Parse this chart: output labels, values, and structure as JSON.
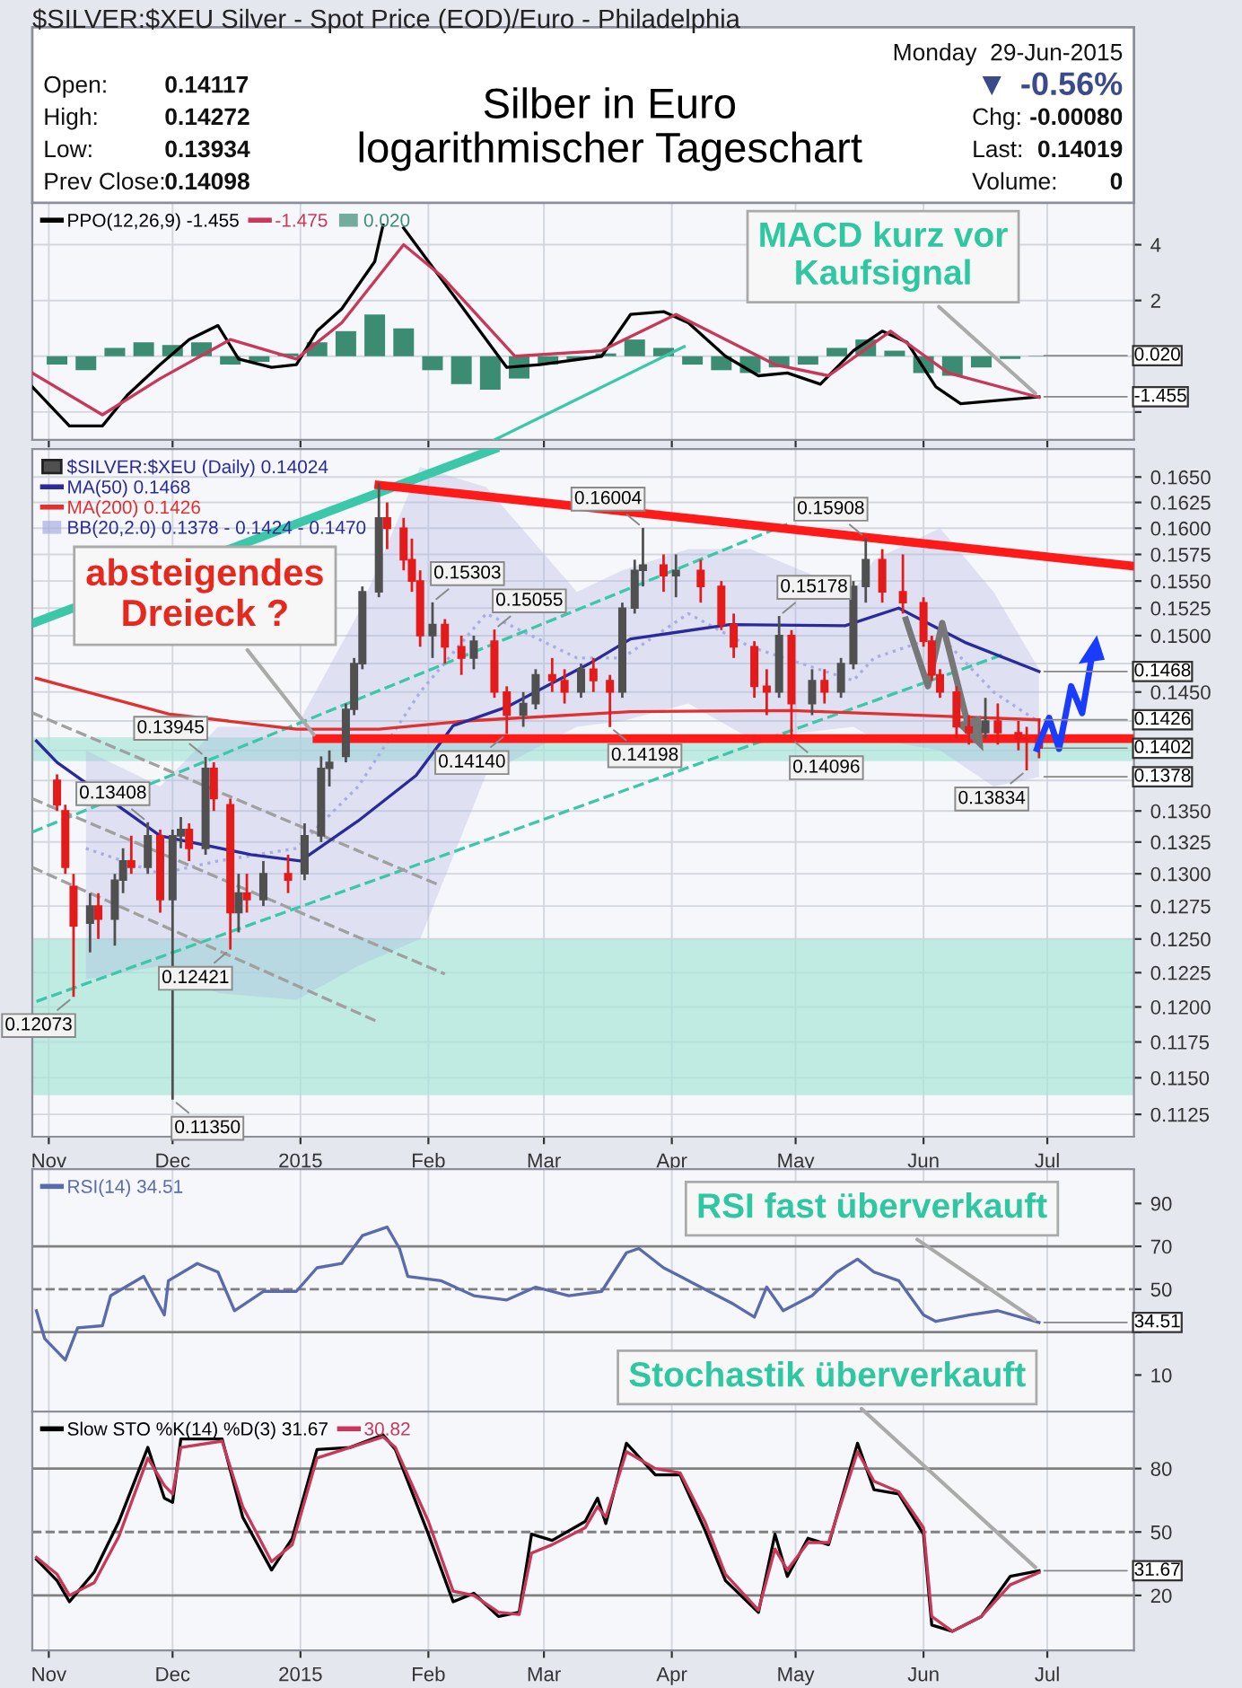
{
  "chart_data": [
    {
      "type": "other",
      "subtitle": "$SILVER:$XEU Silver - Spot Price (EOD)/Euro - Philadelphia",
      "title": "Silber in Euro\nlogarithmischer Tageschart",
      "annotations": [
        "Open:",
        "0.14117",
        "High:",
        "0.14272",
        "Low:",
        "0.13934",
        "Prev Close:",
        "0.14098",
        "Monday  29-Jun-2015",
        "▼",
        "-0.56%",
        "Chg:",
        "-0.00080",
        "Last:",
        "0.14019",
        "Volume:",
        "0"
      ]
    },
    {
      "type": "line",
      "legend": "top left",
      "grid": true,
      "tick_labels": "y",
      "xlim": [
        "2014-10-28",
        "2015-07-22"
      ],
      "xticks": [
        {
          "value": "2014-11-01",
          "label": "Nov"
        },
        {
          "value": "2014-12-01",
          "label": "Dec"
        },
        {
          "value": "2015-01-01",
          "label": "2015"
        },
        {
          "value": "2015-02-01",
          "label": "Feb"
        },
        {
          "value": "2015-03-01",
          "label": "Mar"
        },
        {
          "value": "2015-04-01",
          "label": "Apr"
        },
        {
          "value": "2015-05-01",
          "label": "May"
        },
        {
          "value": "2015-06-01",
          "label": "Jun"
        },
        {
          "value": "2015-07-01",
          "label": "Jul"
        }
      ],
      "ylim": [
        -3.0,
        5.5
      ],
      "yticks": [
        4,
        2,
        {
          "value": 0,
          "label": null
        },
        {
          "value": -2,
          "label": null
        }
      ],
      "annotations": [
        {
          "text": "MACD kurz vor\nKaufsignal",
          "x": "2015-06-29",
          "y": -1.455
        },
        {
          "text": "0.020",
          "x": "2015-06-29",
          "y": 0.02
        },
        {
          "text": "-1.455",
          "x": "2015-06-29",
          "y": -1.455
        }
      ],
      "series": [
        {
          "name": "0.020",
          "type": "bar",
          "color": "#3c8c74",
          "x": [
            "2014-11-03",
            "2014-11-10",
            "2014-11-17",
            "2014-11-24",
            "2014-12-01",
            "2014-12-08",
            "2014-12-15",
            "2014-12-22",
            "2014-12-29",
            "2015-01-05",
            "2015-01-12",
            "2015-01-19",
            "2015-01-26",
            "2015-02-02",
            "2015-02-09",
            "2015-02-16",
            "2015-02-23",
            "2015-03-02",
            "2015-03-09",
            "2015-03-16",
            "2015-03-23",
            "2015-03-30",
            "2015-04-06",
            "2015-04-13",
            "2015-04-20",
            "2015-04-27",
            "2015-05-04",
            "2015-05-11",
            "2015-05-18",
            "2015-05-25",
            "2015-06-01",
            "2015-06-08",
            "2015-06-15",
            "2015-06-22",
            "2015-06-29"
          ],
          "values": [
            -0.3,
            -0.5,
            0.3,
            0.5,
            0.4,
            0.5,
            -0.3,
            -0.2,
            0.1,
            0.5,
            0.9,
            1.5,
            1.0,
            -0.5,
            -1.0,
            -1.2,
            -0.8,
            -0.3,
            -0.1,
            0.1,
            0.6,
            0.3,
            -0.3,
            -0.5,
            -0.6,
            -0.4,
            -0.3,
            0.3,
            0.6,
            0.2,
            -0.6,
            -0.7,
            -0.4,
            -0.1,
            0.02
          ]
        },
        {
          "name": "PPO(12,26,9) -1.455",
          "color": "#000000",
          "x": [
            "2014-10-28",
            "2014-11-06",
            "2014-11-14",
            "2014-11-20",
            "2014-11-28",
            "2014-12-05",
            "2014-12-12",
            "2014-12-17",
            "2014-12-25",
            "2014-12-31",
            "2015-01-05",
            "2015-01-11",
            "2015-01-19",
            "2015-01-21",
            "2015-01-23",
            "2015-01-26",
            "2015-02-01",
            "2015-02-12",
            "2015-02-20",
            "2015-02-28",
            "2015-03-15",
            "2015-03-22",
            "2015-03-30",
            "2015-04-05",
            "2015-04-14",
            "2015-04-22",
            "2015-04-29",
            "2015-05-07",
            "2015-05-15",
            "2015-05-22",
            "2015-05-28",
            "2015-06-04",
            "2015-06-10",
            "2015-06-18",
            "2015-06-29"
          ],
          "values": [
            -1.1,
            -2.5,
            -2.5,
            -1.4,
            -0.3,
            0.6,
            1.1,
            -0.1,
            -0.4,
            -0.3,
            0.9,
            1.7,
            3.4,
            4.7,
            null,
            4.6,
            3.4,
            1.2,
            -0.4,
            -0.3,
            0.0,
            1.5,
            1.6,
            1.2,
            0.0,
            -0.7,
            -0.6,
            -1.0,
            0.2,
            0.9,
            0.5,
            -1.1,
            -1.7,
            -1.6,
            -1.455
          ]
        },
        {
          "name": "-1.475",
          "color": "#c8385a",
          "x": [
            "2014-10-28",
            "2014-11-14",
            "2014-11-28",
            "2014-12-15",
            "2014-12-31",
            "2015-01-11",
            "2015-01-26",
            "2015-02-04",
            "2015-02-22",
            "2015-03-15",
            "2015-04-02",
            "2015-04-26",
            "2015-05-09",
            "2015-05-24",
            "2015-06-07",
            "2015-06-29"
          ],
          "values": [
            -0.6,
            -2.1,
            -0.8,
            0.6,
            -0.1,
            1.2,
            4.0,
            2.9,
            0.0,
            0.2,
            1.5,
            -0.3,
            -0.7,
            0.9,
            -0.6,
            -1.475
          ]
        },
        {
          "color": "#3cc8a8",
          "x": [
            "2015-02-17",
            "2015-04-04"
          ],
          "values": [
            -3.0,
            0.35
          ]
        }
      ]
    },
    {
      "type": "candlestick",
      "log": true,
      "legend": "top left",
      "grid": true,
      "xlim": [
        "2014-10-28",
        "2015-07-22"
      ],
      "xticks": [
        {
          "value": "2014-11-01",
          "label": "Nov"
        },
        {
          "value": "2014-12-01",
          "label": "Dec"
        },
        {
          "value": "2015-01-01",
          "label": "2015"
        },
        {
          "value": "2015-02-01",
          "label": "Feb"
        },
        {
          "value": "2015-03-01",
          "label": "Mar"
        },
        {
          "value": "2015-04-01",
          "label": "Apr"
        },
        {
          "value": "2015-05-01",
          "label": "May"
        },
        {
          "value": "2015-06-01",
          "label": "Jun"
        },
        {
          "value": "2015-07-01",
          "label": "Jul"
        }
      ],
      "ylim": [
        0.111,
        0.1678
      ],
      "yticks": [
        {
          "value": 0.165,
          "label": "0.1650"
        },
        {
          "value": 0.1625,
          "label": "0.1625"
        },
        {
          "value": 0.16,
          "label": "0.1600"
        },
        {
          "value": 0.1575,
          "label": "0.1575"
        },
        {
          "value": 0.155,
          "label": "0.1550"
        },
        {
          "value": 0.1525,
          "label": "0.1525"
        },
        {
          "value": 0.15,
          "label": "0.1500"
        },
        {
          "value": 0.1475,
          "label": null
        },
        {
          "value": 0.145,
          "label": "0.1450"
        },
        {
          "value": 0.1425,
          "label": null
        },
        {
          "value": 0.14,
          "label": null
        },
        {
          "value": 0.1375,
          "label": null
        },
        {
          "value": 0.135,
          "label": "0.1350"
        },
        {
          "value": 0.1325,
          "label": "0.1325"
        },
        {
          "value": 0.13,
          "label": "0.1300"
        },
        {
          "value": 0.1275,
          "label": "0.1275"
        },
        {
          "value": 0.125,
          "label": "0.1250"
        },
        {
          "value": 0.1225,
          "label": "0.1225"
        },
        {
          "value": 0.12,
          "label": "0.1200"
        },
        {
          "value": 0.1175,
          "label": "0.1175"
        },
        {
          "value": 0.115,
          "label": "0.1150"
        },
        {
          "value": 0.1125,
          "label": "0.1125"
        }
      ],
      "bands": [
        {
          "axis": "y",
          "from": 0.1391,
          "to": 0.1411,
          "color": "#a9e6d8"
        },
        {
          "axis": "y",
          "from": 0.1138,
          "to": 0.125,
          "color": "#a9e6d8"
        }
      ],
      "annotations": [
        {
          "text": "absteigendes\nDreieck ?",
          "x": "2015-01-05",
          "y": 0.141
        },
        {
          "text": "0.1468",
          "x": "2015-06-29",
          "y": 0.1468
        },
        {
          "text": "0.1426",
          "x": "2015-06-29",
          "y": 0.1426
        },
        {
          "text": "0.1402",
          "x": "2015-06-29",
          "y": 0.14019
        },
        {
          "text": "0.1378",
          "x": "2015-06-29",
          "y": 0.1378
        }
      ],
      "series": [
        {
          "name": "BB(20,2.0) 0.1378 - 0.1424 - 0.1470",
          "type": "line",
          "color": "#a8aee0",
          "line_style": "dotted",
          "x": [
            "2014-11-10",
            "2014-11-28",
            "2014-12-12",
            "2014-12-31",
            "2015-01-15",
            "2015-01-30",
            "2015-02-15",
            "2015-03-09",
            "2015-03-20",
            "2015-04-05",
            "2015-04-20",
            "2015-05-15",
            "2015-05-20",
            "2015-06-05",
            "2015-06-18",
            "2015-06-29"
          ],
          "values": [
            0.132,
            0.13,
            0.131,
            0.132,
            0.137,
            0.145,
            0.152,
            0.148,
            0.148,
            0.152,
            0.149,
            0.146,
            0.148,
            0.15,
            0.145,
            0.1424
          ],
          "lower": [
            0.122,
            0.123,
            0.121,
            0.1205,
            0.123,
            0.125,
            0.138,
            0.142,
            0.1425,
            0.144,
            0.141,
            0.142,
            0.141,
            0.14,
            0.137,
            0.1378
          ],
          "upper": [
            0.14,
            0.137,
            0.142,
            0.142,
            0.152,
            0.166,
            0.164,
            0.154,
            0.156,
            0.158,
            0.158,
            0.154,
            0.157,
            0.16,
            0.154,
            0.147
          ]
        },
        {
          "color": "#3cc8a8",
          "type": "line",
          "x": [
            "2014-10-28",
            "2015-02-17"
          ],
          "values": [
            0.1511,
            0.1678
          ]
        },
        {
          "color": "#3cc8a8",
          "type": "line",
          "line_style": "dashed",
          "x": [
            "2014-10-28",
            "2015-04-29"
          ],
          "values": [
            0.1333,
            0.1604
          ]
        },
        {
          "color": "#3cc8a8",
          "type": "line",
          "line_style": "dashed",
          "x": [
            "2014-10-29",
            "2015-06-21"
          ],
          "values": [
            0.1204,
            0.1484
          ]
        },
        {
          "color": "#a0a0a0",
          "type": "line",
          "line_style": "dashed",
          "x": [
            "2014-10-28",
            "2015-02-03"
          ],
          "values": [
            0.1432,
            0.1292
          ]
        },
        {
          "color": "#a0a0a0",
          "type": "line",
          "line_style": "dashed",
          "x": [
            "2014-10-28",
            "2015-02-05"
          ],
          "values": [
            0.136,
            0.1224
          ]
        },
        {
          "color": "#a0a0a0",
          "type": "line",
          "line_style": "dashed",
          "x": [
            "2014-10-28",
            "2015-01-20"
          ],
          "values": [
            0.1305,
            0.1189
          ]
        },
        {
          "name": "MA(200) 0.1426",
          "type": "line",
          "color": "#e03030",
          "x": [
            "2014-10-29",
            "2014-11-30",
            "2014-12-31",
            "2015-01-20",
            "2015-02-10",
            "2015-03-22",
            "2015-04-30",
            "2015-06-29"
          ],
          "values": [
            0.1462,
            0.1431,
            0.1418,
            0.1418,
            0.1425,
            0.1433,
            0.1434,
            0.1426
          ]
        },
        {
          "name": "MA(50) 0.1468",
          "type": "line",
          "color": "#2a2a9a",
          "x": [
            "2014-10-29",
            "2014-11-03",
            "2014-11-28",
            "2014-12-20",
            "2015-01-01",
            "2015-01-15",
            "2015-01-29",
            "2015-02-07",
            "2015-02-20",
            "2015-03-12",
            "2015-03-22",
            "2015-04-15",
            "2015-05-13",
            "2015-05-26",
            "2015-06-11",
            "2015-06-29"
          ],
          "values": [
            0.1408,
            0.139,
            0.133,
            0.1315,
            0.131,
            0.1342,
            0.1379,
            0.1421,
            0.1437,
            0.1475,
            0.1497,
            0.151,
            0.1509,
            0.1525,
            0.1494,
            0.1468
          ]
        },
        {
          "color": "#ff1a1a",
          "type": "line",
          "x": [
            "2015-01-20",
            "2015-07-22"
          ],
          "values": [
            0.1642,
            0.1564
          ]
        },
        {
          "color": "#ff1a1a",
          "type": "line",
          "x": [
            "2015-01-05",
            "2015-07-22"
          ],
          "values": [
            0.141,
            0.141
          ]
        },
        {
          "name": "$SILVER:$XEU (Daily) 0.14024",
          "type": "candlestick",
          "x": [
            "2014-11-03",
            "2014-11-05",
            "2014-11-07",
            "2014-11-11",
            "2014-11-13",
            "2014-11-17",
            "2014-11-19",
            "2014-11-21",
            "2014-11-25",
            "2014-11-28",
            "2014-12-01",
            "2014-12-03",
            "2014-12-05",
            "2014-12-09",
            "2014-12-11",
            "2014-12-15",
            "2014-12-17",
            "2014-12-19",
            "2014-12-23",
            "2014-12-29",
            "2015-01-02",
            "2015-01-06",
            "2015-01-08",
            "2015-01-12",
            "2015-01-14",
            "2015-01-16",
            "2015-01-20",
            "2015-01-22",
            "2015-01-26",
            "2015-01-28",
            "2015-01-30",
            "2015-02-02",
            "2015-02-05",
            "2015-02-09",
            "2015-02-12",
            "2015-02-17",
            "2015-02-20",
            "2015-02-24",
            "2015-02-27",
            "2015-03-03",
            "2015-03-06",
            "2015-03-10",
            "2015-03-13",
            "2015-03-17",
            "2015-03-20",
            "2015-03-23",
            "2015-03-25",
            "2015-03-30",
            "2015-04-02",
            "2015-04-08",
            "2015-04-13",
            "2015-04-16",
            "2015-04-21",
            "2015-04-24",
            "2015-04-27",
            "2015-04-30",
            "2015-05-05",
            "2015-05-08",
            "2015-05-12",
            "2015-05-15",
            "2015-05-18",
            "2015-05-22",
            "2015-05-27",
            "2015-06-01",
            "2015-06-03",
            "2015-06-05",
            "2015-06-09",
            "2015-06-12",
            "2015-06-16",
            "2015-06-19",
            "2015-06-24",
            "2015-06-26",
            "2015-06-29"
          ],
          "ohlc": [
            [
              0.1375,
              0.138,
              0.135,
              0.1355
            ],
            [
              0.135,
              0.1355,
              0.13,
              0.1305
            ],
            [
              0.129,
              0.13,
              0.12073,
              0.126
            ],
            [
              0.1262,
              0.1285,
              0.124,
              0.1275
            ],
            [
              0.1275,
              0.1285,
              0.125,
              0.1265
            ],
            [
              0.1265,
              0.13,
              0.1245,
              0.1295
            ],
            [
              0.1295,
              0.132,
              0.1285,
              0.131
            ],
            [
              0.131,
              0.133,
              0.13,
              0.1305
            ],
            [
              0.1305,
              0.13408,
              0.13,
              0.133
            ],
            [
              0.133,
              0.1335,
              0.127,
              0.128
            ],
            [
              0.128,
              0.1335,
              0.1135,
              0.133
            ],
            [
              0.133,
              0.1345,
              0.132,
              0.1335
            ],
            [
              0.1335,
              0.134,
              0.131,
              0.132
            ],
            [
              0.132,
              0.13945,
              0.1315,
              0.1385
            ],
            [
              0.1385,
              0.139,
              0.135,
              0.136
            ],
            [
              0.1355,
              0.136,
              0.12421,
              0.127
            ],
            [
              0.127,
              0.13,
              0.1255,
              0.1285
            ],
            [
              0.1285,
              0.13,
              0.127,
              0.128
            ],
            [
              0.128,
              0.131,
              0.1275,
              0.13
            ],
            [
              0.13,
              0.1315,
              0.1285,
              0.1295
            ],
            [
              0.13,
              0.134,
              0.1295,
              0.133
            ],
            [
              0.133,
              0.1395,
              0.1325,
              0.1385
            ],
            [
              0.1385,
              0.14,
              0.137,
              0.139
            ],
            [
              0.1395,
              0.144,
              0.139,
              0.1435
            ],
            [
              0.1435,
              0.148,
              0.143,
              0.1475
            ],
            [
              0.1475,
              0.1545,
              0.147,
              0.154
            ],
            [
              0.154,
              0.1644,
              0.1535,
              0.161
            ],
            [
              0.161,
              0.1625,
              0.158,
              0.16
            ],
            [
              0.16,
              0.161,
              0.156,
              0.157
            ],
            [
              0.157,
              0.159,
              0.154,
              0.155
            ],
            [
              0.155,
              0.156,
              0.149,
              0.15
            ],
            [
              0.15,
              0.15303,
              0.148,
              0.151
            ],
            [
              0.151,
              0.1515,
              0.1475,
              0.149
            ],
            [
              0.149,
              0.15,
              0.1465,
              0.148
            ],
            [
              0.148,
              0.15,
              0.147,
              0.1495
            ],
            [
              0.1495,
              0.15055,
              0.1445,
              0.145
            ],
            [
              0.145,
              0.1455,
              0.1414,
              0.143
            ],
            [
              0.143,
              0.145,
              0.142,
              0.144
            ],
            [
              0.144,
              0.147,
              0.1435,
              0.1465
            ],
            [
              0.1465,
              0.148,
              0.145,
              0.146
            ],
            [
              0.146,
              0.147,
              0.144,
              0.145
            ],
            [
              0.145,
              0.1475,
              0.1445,
              0.147
            ],
            [
              0.147,
              0.148,
              0.145,
              0.146
            ],
            [
              0.146,
              0.1465,
              0.14198,
              0.145
            ],
            [
              0.145,
              0.153,
              0.1445,
              0.1525
            ],
            [
              0.1525,
              0.157,
              0.152,
              0.156
            ],
            [
              0.156,
              0.16004,
              0.1545,
              0.1565
            ],
            [
              0.1565,
              0.1575,
              0.154,
              0.1555
            ],
            [
              0.1555,
              0.1575,
              0.1535,
              0.156
            ],
            [
              0.156,
              0.157,
              0.153,
              0.1545
            ],
            [
              0.1545,
              0.155,
              0.1505,
              0.151
            ],
            [
              0.151,
              0.152,
              0.148,
              0.149
            ],
            [
              0.149,
              0.1495,
              0.1445,
              0.1455
            ],
            [
              0.1455,
              0.147,
              0.143,
              0.145
            ],
            [
              0.145,
              0.15178,
              0.1445,
              0.15
            ],
            [
              0.15,
              0.1505,
              0.14096,
              0.144
            ],
            [
              0.144,
              0.147,
              0.143,
              0.146
            ],
            [
              0.146,
              0.147,
              0.144,
              0.145
            ],
            [
              0.145,
              0.148,
              0.1445,
              0.1475
            ],
            [
              0.1475,
              0.155,
              0.147,
              0.1545
            ],
            [
              0.1545,
              0.15908,
              0.153,
              0.157
            ],
            [
              0.157,
              0.158,
              0.153,
              0.154
            ],
            [
              0.154,
              0.1575,
              0.152,
              0.153
            ],
            [
              0.153,
              0.1535,
              0.149,
              0.1495
            ],
            [
              0.1495,
              0.15,
              0.146,
              0.1465
            ],
            [
              0.1465,
              0.147,
              0.1445,
              0.145
            ],
            [
              0.145,
              0.1455,
              0.141,
              0.142
            ],
            [
              0.142,
              0.143,
              0.1405,
              0.1415
            ],
            [
              0.1415,
              0.1445,
              0.141,
              0.1425
            ],
            [
              0.1425,
              0.144,
              0.1405,
              0.1415
            ],
            [
              0.1415,
              0.1425,
              0.14,
              0.141
            ],
            [
              0.141,
              0.142,
              0.13834,
              0.14098
            ],
            [
              0.14117,
              0.14272,
              0.13934,
              0.14019
            ]
          ],
          "colors": [
            "#e31b1b",
            "#e31b1b",
            "#e31b1b",
            "#505050",
            "#e31b1b",
            "#505050",
            "#505050",
            "#e31b1b",
            "#505050",
            "#e31b1b",
            "#505050",
            "#505050",
            "#e31b1b",
            "#505050",
            "#e31b1b",
            "#e31b1b",
            "#505050",
            "#e31b1b",
            "#505050",
            "#e31b1b",
            "#505050",
            "#505050",
            "#505050",
            "#505050",
            "#505050",
            "#505050",
            "#505050",
            "#e31b1b",
            "#e31b1b",
            "#e31b1b",
            "#e31b1b",
            "#505050",
            "#e31b1b",
            "#e31b1b",
            "#505050",
            "#e31b1b",
            "#e31b1b",
            "#505050",
            "#505050",
            "#e31b1b",
            "#e31b1b",
            "#505050",
            "#e31b1b",
            "#e31b1b",
            "#505050",
            "#505050",
            "#505050",
            "#e31b1b",
            "#505050",
            "#e31b1b",
            "#e31b1b",
            "#e31b1b",
            "#e31b1b",
            "#e31b1b",
            "#505050",
            "#e31b1b",
            "#505050",
            "#e31b1b",
            "#505050",
            "#505050",
            "#505050",
            "#e31b1b",
            "#e31b1b",
            "#e31b1b",
            "#e31b1b",
            "#e31b1b",
            "#e31b1b",
            "#e31b1b",
            "#505050",
            "#e31b1b",
            "#e31b1b",
            "#e31b1b",
            "#e31b1b"
          ],
          "value_labels": [
            null,
            null,
            "0.12073",
            null,
            null,
            null,
            null,
            null,
            "0.13408",
            null,
            "0.11350",
            null,
            null,
            "0.13945",
            null,
            "0.12421",
            null,
            null,
            null,
            null,
            null,
            null,
            null,
            null,
            null,
            null,
            null,
            null,
            null,
            null,
            null,
            "0.15303",
            null,
            null,
            null,
            "0.15055",
            "0.14140",
            null,
            null,
            null,
            null,
            null,
            null,
            "0.14198",
            null,
            null,
            "0.16004",
            null,
            null,
            null,
            null,
            null,
            null,
            null,
            "0.15178",
            "0.14096",
            null,
            null,
            null,
            null,
            "0.15908",
            null,
            null,
            null,
            null,
            null,
            null,
            null,
            null,
            null,
            null,
            "0.13834",
            null
          ]
        }
      ]
    },
    {
      "type": "line",
      "legend": "top left",
      "grid": "x",
      "tick_labels": "y",
      "xlim": [
        "2014-10-28",
        "2015-07-22"
      ],
      "xticks": [
        {
          "value": "2014-11-01",
          "label": "Nov"
        },
        {
          "value": "2014-12-01",
          "label": "Dec"
        },
        {
          "value": "2015-01-01",
          "label": "2015"
        },
        {
          "value": "2015-02-01",
          "label": "Feb"
        },
        {
          "value": "2015-03-01",
          "label": "Mar"
        },
        {
          "value": "2015-04-01",
          "label": "Apr"
        },
        {
          "value": "2015-05-01",
          "label": "May"
        },
        {
          "value": "2015-06-01",
          "label": "Jun"
        },
        {
          "value": "2015-07-01",
          "label": "Jul"
        }
      ],
      "ylim": [
        -7,
        106
      ],
      "yticks": [
        90,
        70,
        50,
        {
          "value": 30,
          "label": null
        },
        10
      ],
      "ref_lines": [
        {
          "axis": "y",
          "value": 70,
          "color": "#808080"
        },
        {
          "axis": "y",
          "value": 30,
          "color": "#808080"
        },
        {
          "axis": "y",
          "value": 50,
          "color": "#808080",
          "line_style": "dashed"
        }
      ],
      "annotations": [
        {
          "text": "RSI fast überverkauft",
          "x": "2015-06-29",
          "y": 34.51
        },
        {
          "text": "34.51",
          "x": "2015-06-29",
          "y": 34.51
        }
      ],
      "series": [
        {
          "name": "RSI(14) 34.51",
          "color": "#5a6aaa",
          "x": [
            "2014-10-29",
            "2014-10-31",
            "2014-11-05",
            "2014-11-08",
            "2014-11-14",
            "2014-11-16",
            "2014-11-24",
            "2014-11-29",
            "2014-11-30",
            "2014-12-07",
            "2014-12-12",
            "2014-12-16",
            "2014-12-23",
            "2014-12-31",
            "2015-01-05",
            "2015-01-11",
            "2015-01-16",
            "2015-01-22",
            "2015-01-25",
            "2015-01-27",
            "2015-02-04",
            "2015-02-12",
            "2015-02-20",
            "2015-02-27",
            "2015-03-07",
            "2015-03-15",
            "2015-03-21",
            "2015-03-24",
            "2015-03-30",
            "2015-04-06",
            "2015-04-16",
            "2015-04-21",
            "2015-04-24",
            "2015-04-28",
            "2015-05-05",
            "2015-05-11",
            "2015-05-16",
            "2015-05-20",
            "2015-05-26",
            "2015-06-01",
            "2015-06-04",
            "2015-06-12",
            "2015-06-19",
            "2015-06-29"
          ],
          "values": [
            40,
            27,
            17,
            32,
            33,
            47,
            56,
            38,
            54,
            62,
            58,
            40,
            49,
            49,
            60,
            62,
            75,
            79,
            69,
            56,
            54,
            47,
            45,
            51,
            47,
            49,
            67,
            69,
            60,
            53,
            43,
            37,
            51,
            40,
            47,
            58,
            64,
            58,
            54,
            38,
            35,
            38,
            40,
            34.51
          ]
        }
      ]
    },
    {
      "type": "line",
      "legend": "top left",
      "grid": "x",
      "xlim": [
        "2014-10-28",
        "2015-07-22"
      ],
      "xticks": [
        {
          "value": "2014-11-01",
          "label": "Nov"
        },
        {
          "value": "2014-12-01",
          "label": "Dec"
        },
        {
          "value": "2015-01-01",
          "label": "2015"
        },
        {
          "value": "2015-02-01",
          "label": "Feb"
        },
        {
          "value": "2015-03-01",
          "label": "Mar"
        },
        {
          "value": "2015-04-01",
          "label": "Apr"
        },
        {
          "value": "2015-05-01",
          "label": "May"
        },
        {
          "value": "2015-06-01",
          "label": "Jun"
        },
        {
          "value": "2015-07-01",
          "label": "Jul"
        }
      ],
      "ylim": [
        -6,
        107
      ],
      "yticks": [
        80,
        50,
        20
      ],
      "ref_lines": [
        {
          "axis": "y",
          "value": 80,
          "color": "#808080"
        },
        {
          "axis": "y",
          "value": 20,
          "color": "#808080"
        },
        {
          "axis": "y",
          "value": 50,
          "color": "#808080",
          "line_style": "dashed"
        }
      ],
      "annotations": [
        {
          "text": "Stochastik überverkauft",
          "x": "2015-06-29",
          "y": 31.67
        },
        {
          "text": "31.67",
          "x": "2015-06-29",
          "y": 31.67
        }
      ],
      "series": [
        {
          "name": "Slow STO %K(14) %D(3) 31.67",
          "color": "#000000",
          "x": [
            "2014-10-29",
            "2014-11-03",
            "2014-11-06",
            "2014-11-12",
            "2014-11-18",
            "2014-11-25",
            "2014-11-29",
            "2014-12-01",
            "2014-12-03",
            "2014-12-13",
            "2014-12-18",
            "2014-12-25",
            "2014-12-30",
            "2015-01-05",
            "2015-01-13",
            "2015-01-21",
            "2015-01-24",
            "2015-02-01",
            "2015-02-07",
            "2015-02-12",
            "2015-02-18",
            "2015-02-23",
            "2015-02-26",
            "2015-03-03",
            "2015-03-11",
            "2015-03-14",
            "2015-03-16",
            "2015-03-21",
            "2015-03-28",
            "2015-04-03",
            "2015-04-09",
            "2015-04-14",
            "2015-04-22",
            "2015-04-26",
            "2015-04-29",
            "2015-05-04",
            "2015-05-09",
            "2015-05-16",
            "2015-05-20",
            "2015-05-26",
            "2015-06-01",
            "2015-06-03",
            "2015-06-08",
            "2015-06-15",
            "2015-06-22",
            "2015-06-29"
          ],
          "values": [
            37,
            27,
            17,
            31,
            55,
            90,
            66,
            64,
            94,
            94,
            57,
            32,
            47,
            89,
            90,
            96,
            89,
            49,
            17,
            21,
            10,
            12,
            49,
            46,
            55,
            66,
            54,
            92,
            77,
            77,
            51,
            27,
            12,
            49,
            29,
            47,
            44,
            92,
            70,
            68,
            49,
            6,
            3,
            10,
            29,
            31.67
          ]
        },
        {
          "name": "30.82",
          "color": "#c8385a",
          "x": [
            "2014-10-29",
            "2014-11-03",
            "2014-11-06",
            "2014-11-12",
            "2014-11-18",
            "2014-11-25",
            "2014-11-29",
            "2014-12-01",
            "2014-12-03",
            "2014-12-13",
            "2014-12-18",
            "2014-12-25",
            "2014-12-30",
            "2015-01-05",
            "2015-01-13",
            "2015-01-21",
            "2015-01-24",
            "2015-02-01",
            "2015-02-07",
            "2015-02-12",
            "2015-02-18",
            "2015-02-23",
            "2015-02-26",
            "2015-03-03",
            "2015-03-11",
            "2015-03-14",
            "2015-03-16",
            "2015-03-21",
            "2015-03-28",
            "2015-04-03",
            "2015-04-09",
            "2015-04-14",
            "2015-04-22",
            "2015-04-26",
            "2015-04-29",
            "2015-05-04",
            "2015-05-09",
            "2015-05-16",
            "2015-05-20",
            "2015-05-26",
            "2015-06-01",
            "2015-06-03",
            "2015-06-08",
            "2015-06-15",
            "2015-06-22",
            "2015-06-29"
          ],
          "values": [
            38,
            30,
            20,
            26,
            48,
            85,
            72,
            68,
            90,
            93,
            62,
            36,
            44,
            85,
            90,
            95,
            90,
            55,
            22,
            20,
            12,
            11,
            40,
            44,
            52,
            62,
            57,
            88,
            80,
            78,
            55,
            30,
            13,
            42,
            32,
            45,
            45,
            88,
            74,
            69,
            52,
            10,
            3,
            10,
            25,
            30.82
          ]
        }
      ]
    }
  ]
}
